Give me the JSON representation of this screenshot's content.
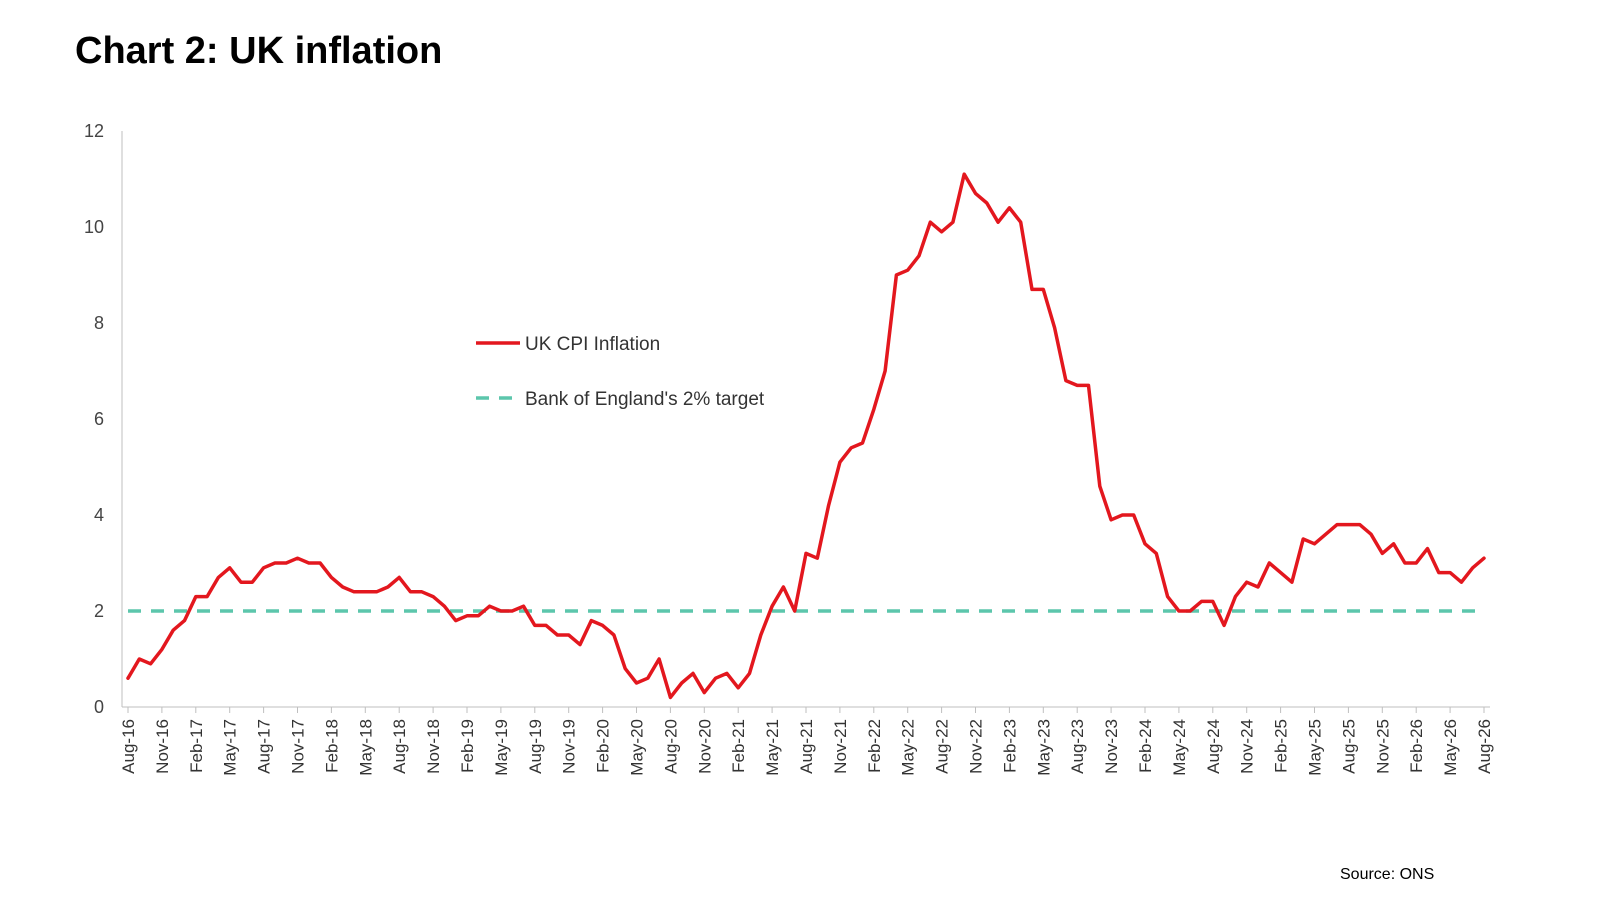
{
  "title": "Chart 2: UK inflation",
  "source": "Source: ONS",
  "colors": {
    "cpi": "#e3171e",
    "target": "#5cc6ac",
    "axis": "#bfbfbf"
  },
  "chart_data": {
    "type": "line",
    "title": "Chart 2: UK inflation",
    "xlabel": "",
    "ylabel": "",
    "ylim": [
      0,
      12
    ],
    "yticks": [
      "0",
      "2",
      "4",
      "6",
      "8",
      "10",
      "12"
    ],
    "legend_position": "upper-middle",
    "grid": false,
    "x_tick_labels": [
      "Aug-16",
      "Nov-16",
      "Feb-17",
      "May-17",
      "Aug-17",
      "Nov-17",
      "Feb-18",
      "May-18",
      "Aug-18",
      "Nov-18",
      "Feb-19",
      "May-19",
      "Aug-19",
      "Nov-19",
      "Feb-20",
      "May-20",
      "Aug-20",
      "Nov-20",
      "Feb-21",
      "May-21",
      "Aug-21",
      "Nov-21",
      "Feb-22",
      "May-22",
      "Aug-22",
      "Nov-22",
      "Feb-23",
      "May-23",
      "Aug-23",
      "Nov-23",
      "Feb-24",
      "May-24",
      "Aug-24",
      "Nov-24",
      "Feb-25",
      "May-25",
      "Aug-25",
      "Nov-25",
      "Feb-26",
      "May-26",
      "Aug-26"
    ],
    "x_start": "Aug-16",
    "x_end": "Aug-26",
    "series": [
      {
        "name": "UK CPI Inflation",
        "style": "solid",
        "values": [
          0.6,
          1.0,
          0.9,
          1.2,
          1.6,
          1.8,
          2.3,
          2.3,
          2.7,
          2.9,
          2.6,
          2.6,
          2.9,
          3.0,
          3.0,
          3.1,
          3.0,
          3.0,
          2.7,
          2.5,
          2.4,
          2.4,
          2.4,
          2.5,
          2.7,
          2.4,
          2.4,
          2.3,
          2.1,
          1.8,
          1.9,
          1.9,
          2.1,
          2.0,
          2.0,
          2.1,
          1.7,
          1.7,
          1.5,
          1.5,
          1.3,
          1.8,
          1.7,
          1.5,
          0.8,
          0.5,
          0.6,
          1.0,
          0.2,
          0.5,
          0.7,
          0.3,
          0.6,
          0.7,
          0.4,
          0.7,
          1.5,
          2.1,
          2.5,
          2.0,
          3.2,
          3.1,
          4.2,
          5.1,
          5.4,
          5.5,
          6.2,
          7.0,
          9.0,
          9.1,
          9.4,
          10.1,
          9.9,
          10.1,
          11.1,
          10.7,
          10.5,
          10.1,
          10.4,
          10.1,
          8.7,
          8.7,
          7.9,
          6.8,
          6.7,
          6.7,
          4.6,
          3.9,
          4.0,
          4.0,
          3.4,
          3.2,
          2.3,
          2.0,
          2.0,
          2.2,
          2.2,
          1.7,
          2.3,
          2.6,
          2.5,
          3.0,
          2.8,
          2.6,
          3.5,
          3.4,
          3.6,
          3.8,
          3.8,
          3.8,
          3.6,
          3.2,
          3.4,
          3.0,
          3.0,
          3.3,
          2.8,
          2.8,
          2.6,
          2.9,
          3.1
        ]
      },
      {
        "name": "Bank of England's 2% target",
        "style": "dashed",
        "values": [
          2,
          2
        ]
      }
    ]
  }
}
